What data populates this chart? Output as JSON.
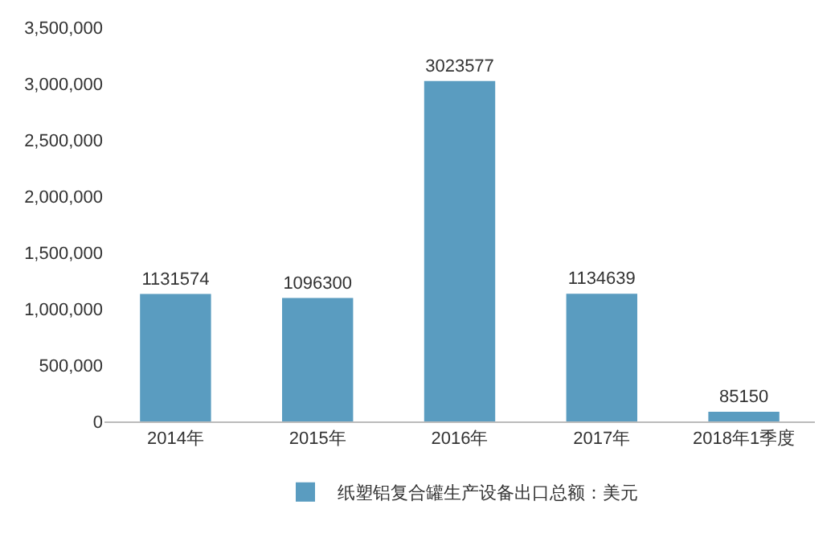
{
  "chart_data": {
    "type": "bar",
    "categories": [
      "2014年",
      "2015年",
      "2016年",
      "2017年",
      "2018年1季度"
    ],
    "series": [
      {
        "name": "纸塑铝复合罐生产设备出口总额：美元",
        "color": "#5a9cc0",
        "values": [
          1131574,
          1096300,
          3023577,
          1134639,
          85150
        ]
      }
    ],
    "ylim": [
      0,
      3500000
    ],
    "yticks": [
      {
        "value": 0,
        "label": "0"
      },
      {
        "value": 500000,
        "label": "500,000"
      },
      {
        "value": 1000000,
        "label": "1,000,000"
      },
      {
        "value": 1500000,
        "label": "1,500,000"
      },
      {
        "value": 2000000,
        "label": "2,000,000"
      },
      {
        "value": 2500000,
        "label": "2,500,000"
      },
      {
        "value": 3000000,
        "label": "3,000,000"
      },
      {
        "value": 3500000,
        "label": "3,500,000"
      }
    ],
    "data_labels": true,
    "grid": false,
    "legend": "bottom"
  }
}
